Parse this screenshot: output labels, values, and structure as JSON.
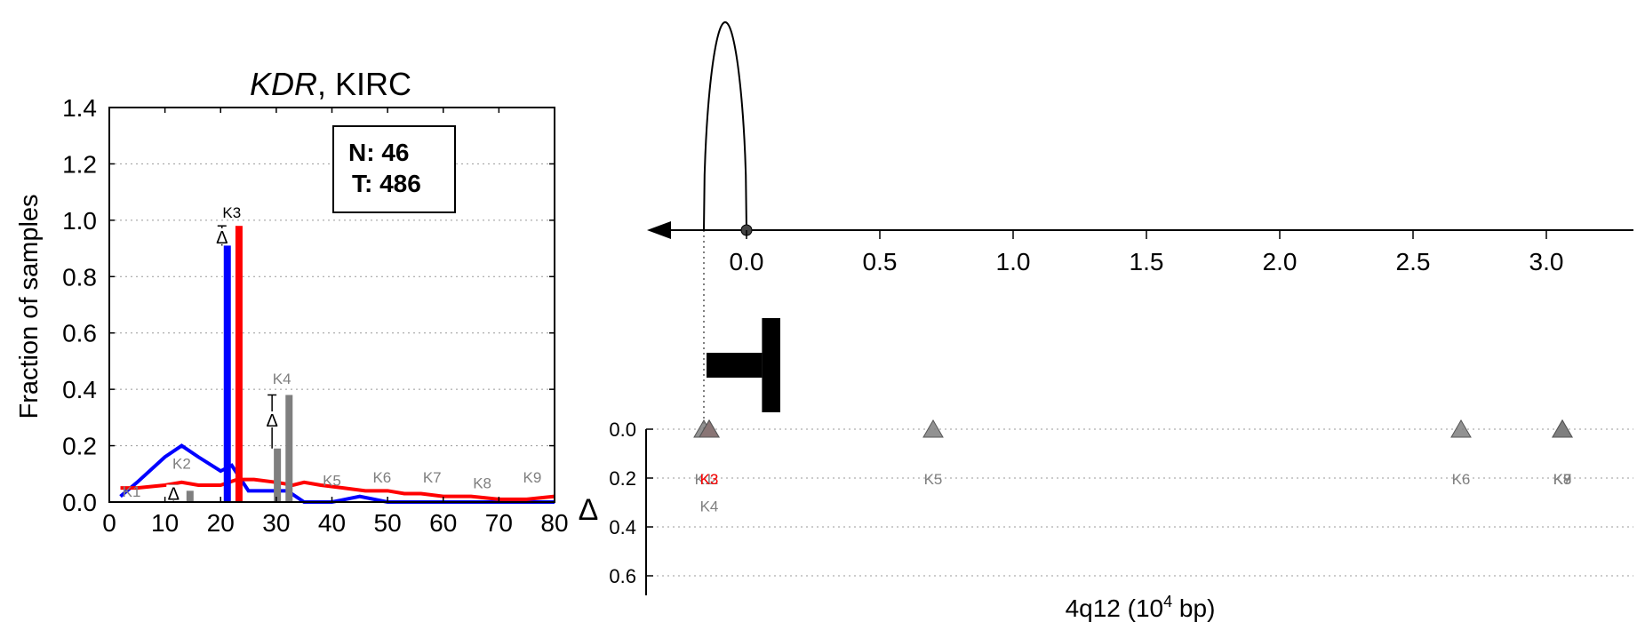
{
  "chart_data": [
    {
      "type": "line",
      "title_gene": "KDR",
      "title_rest": ", KIRC",
      "ylabel": "Fraction of samples",
      "xlim": [
        0,
        80
      ],
      "ylim": [
        0,
        1.4
      ],
      "xticks": [
        "0",
        "10",
        "20",
        "30",
        "40",
        "50",
        "60",
        "70",
        "80"
      ],
      "yticks": [
        "0.0",
        "0.2",
        "0.4",
        "0.6",
        "0.8",
        "1.0",
        "1.2",
        "1.4"
      ],
      "grid": "horizontal dotted",
      "legend_box": {
        "n_label": "N: 46",
        "t_label": "T: 486",
        "placement": "top-right"
      },
      "colors": {
        "normal": "#0000ff",
        "tumor": "#ff0000",
        "peak": "#7f7f7f",
        "delta_marker": "#000000"
      },
      "series": [
        {
          "color": "#0000ff",
          "x": [
            2,
            5,
            10,
            13,
            16,
            20,
            22,
            25,
            28,
            30,
            32,
            35,
            40,
            45,
            50,
            55,
            60,
            65,
            70,
            75,
            80
          ],
          "y": [
            0.02,
            0.07,
            0.16,
            0.2,
            0.16,
            0.11,
            0.13,
            0.04,
            0.04,
            0.04,
            0.04,
            0.0,
            0.0,
            0.02,
            0.0,
            0.0,
            0.0,
            0.0,
            0.0,
            0.0,
            0.0
          ]
        },
        {
          "color": "#ff0000",
          "x": [
            2,
            5,
            10,
            13,
            16,
            20,
            23,
            26,
            30,
            33,
            35,
            38,
            42,
            46,
            50,
            53,
            56,
            60,
            65,
            70,
            75,
            80
          ],
          "y": [
            0.05,
            0.05,
            0.06,
            0.07,
            0.06,
            0.06,
            0.08,
            0.08,
            0.07,
            0.06,
            0.07,
            0.06,
            0.05,
            0.04,
            0.04,
            0.03,
            0.03,
            0.02,
            0.02,
            0.01,
            0.01,
            0.02
          ]
        }
      ],
      "bars": [
        {
          "x": 21.2,
          "value": 0.91,
          "color": "#0000ff"
        },
        {
          "x": 23.3,
          "value": 0.98,
          "color": "#ff0000"
        },
        {
          "x": 30.2,
          "value": 0.19,
          "color": "#7f7f7f"
        },
        {
          "x": 32.3,
          "value": 0.38,
          "color": "#7f7f7f"
        },
        {
          "x": 14.5,
          "value": 0.04,
          "color": "#7f7f7f"
        }
      ],
      "peak_labels": [
        {
          "label": "K1",
          "x": 4,
          "y": 0.0,
          "color": "#7f7f7f"
        },
        {
          "label": "K2",
          "x": 13,
          "y": 0.1,
          "color": "#7f7f7f"
        },
        {
          "label": "K3",
          "x": 22,
          "y": 0.99,
          "color": "#000000"
        },
        {
          "label": "K4",
          "x": 31,
          "y": 0.4,
          "color": "#7f7f7f"
        },
        {
          "label": "K5",
          "x": 40,
          "y": 0.04,
          "color": "#7f7f7f"
        },
        {
          "label": "K6",
          "x": 49,
          "y": 0.05,
          "color": "#7f7f7f"
        },
        {
          "label": "K7",
          "x": 58,
          "y": 0.05,
          "color": "#7f7f7f"
        },
        {
          "label": "K8",
          "x": 67,
          "y": 0.03,
          "color": "#7f7f7f"
        },
        {
          "label": "K9",
          "x": 76,
          "y": 0.05,
          "color": "#7f7f7f"
        }
      ],
      "deltas": [
        {
          "x": 21.2,
          "y": 0.94,
          "err_lo": 0.91,
          "err_hi": 0.98
        },
        {
          "x": 30.2,
          "y": 0.29,
          "err_lo": 0.19,
          "err_hi": 0.38
        },
        {
          "x": 12.5,
          "y": 0.03,
          "err_lo": 0.0,
          "err_hi": 0.06
        }
      ],
      "delta_symbol": "Δ"
    },
    {
      "type": "scatter",
      "xlabel_base": "4q12 (10",
      "xlabel_exp": "4",
      "xlabel_tail": " bp)",
      "ylabel": "Δ",
      "xlim": [
        -0.38,
        3.27
      ],
      "xticks_top": [
        "0.0",
        "0.5",
        "1.0",
        "1.5",
        "2.0",
        "2.5",
        "3.0"
      ],
      "yticks_bottom": [
        "0.0",
        "0.2",
        "0.4",
        "0.6"
      ],
      "ylim_bottom": [
        0.0,
        0.68
      ],
      "density_curve": {
        "center": -0.08,
        "half_width": 0.08
      },
      "strand_arrow": "left",
      "gene_block": {
        "start": -0.15,
        "end": 0.08
      },
      "markers": [
        {
          "label": "K1",
          "x": -0.16,
          "delta": 0.0,
          "color": "#7f7f7f"
        },
        {
          "label": "K2",
          "x": -0.14,
          "delta": 0.0,
          "color": "#7f7f7f"
        },
        {
          "label": "K3",
          "x": -0.14,
          "delta": 0.0,
          "color": "#ff0000"
        },
        {
          "label": "K4",
          "x": -0.14,
          "delta": 0.0,
          "color": "#7f7f7f"
        },
        {
          "label": "K5",
          "x": 0.7,
          "delta": 0.0,
          "color": "#7f7f7f"
        },
        {
          "label": "K6",
          "x": 2.68,
          "delta": 0.0,
          "color": "#7f7f7f"
        },
        {
          "label": "K7",
          "x": 3.06,
          "delta": 0.0,
          "color": "#7f7f7f"
        },
        {
          "label": "K8",
          "x": 3.06,
          "delta": 0.0,
          "color": "#7f7f7f"
        },
        {
          "label": "K9",
          "x": 3.06,
          "delta": 0.0,
          "color": "#7f7f7f"
        }
      ]
    }
  ]
}
